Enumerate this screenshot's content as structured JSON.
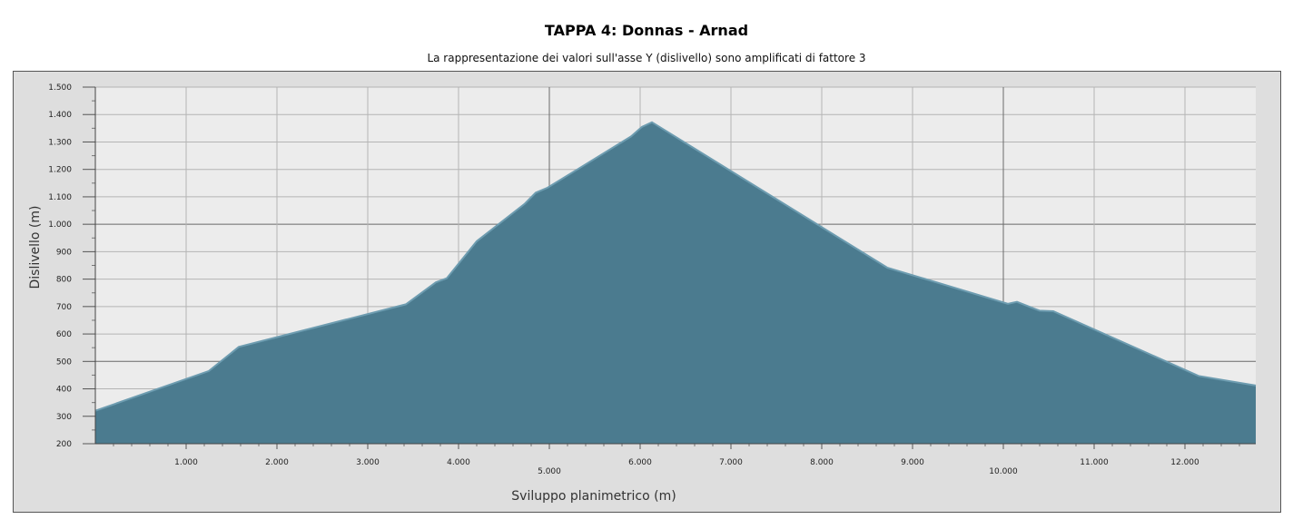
{
  "title": "TAPPA 4: Donnas - Arnad",
  "subtitle": "La rappresentazione dei valori sull'asse Y (dislivello) sono amplificati di fattore 3",
  "chart_data": {
    "type": "area",
    "xlabel": "Sviluppo planimetrico (m)",
    "ylabel": "Dislivello (m)",
    "xlim": [
      0,
      12780
    ],
    "ylim": [
      200,
      1500
    ],
    "grid": true,
    "area_color": "#4b7b8f",
    "line_color": "#6d9cb0",
    "plot_bg": "#ececec",
    "x_ticks": [
      {
        "value": 1000,
        "label": "1.000"
      },
      {
        "value": 2000,
        "label": "2.000"
      },
      {
        "value": 3000,
        "label": "3.000"
      },
      {
        "value": 4000,
        "label": "4.000"
      },
      {
        "value": 5000,
        "label": "5.000"
      },
      {
        "value": 6000,
        "label": "6.000"
      },
      {
        "value": 7000,
        "label": "7.000"
      },
      {
        "value": 8000,
        "label": "8.000"
      },
      {
        "value": 9000,
        "label": "9.000"
      },
      {
        "value": 10000,
        "label": "10.000"
      },
      {
        "value": 11000,
        "label": "11.000"
      },
      {
        "value": 12000,
        "label": "12.000"
      }
    ],
    "y_ticks": [
      {
        "value": 200,
        "label": "200"
      },
      {
        "value": 300,
        "label": "300"
      },
      {
        "value": 400,
        "label": "400"
      },
      {
        "value": 500,
        "label": "500"
      },
      {
        "value": 600,
        "label": "600"
      },
      {
        "value": 700,
        "label": "700"
      },
      {
        "value": 800,
        "label": "800"
      },
      {
        "value": 900,
        "label": "900"
      },
      {
        "value": 1000,
        "label": "1.000"
      },
      {
        "value": 1100,
        "label": "1.100"
      },
      {
        "value": 1200,
        "label": "1.200"
      },
      {
        "value": 1300,
        "label": "1.300"
      },
      {
        "value": 1400,
        "label": "1.400"
      },
      {
        "value": 1500,
        "label": "1.500"
      }
    ],
    "x_major": [
      5000,
      10000
    ],
    "y_major": [
      500,
      1000
    ],
    "points": [
      [
        0,
        320
      ],
      [
        1250,
        465
      ],
      [
        1580,
        553
      ],
      [
        3420,
        708
      ],
      [
        3750,
        788
      ],
      [
        3870,
        803
      ],
      [
        4200,
        938
      ],
      [
        4730,
        1075
      ],
      [
        4850,
        1115
      ],
      [
        4980,
        1133
      ],
      [
        5900,
        1320
      ],
      [
        6020,
        1355
      ],
      [
        6130,
        1372
      ],
      [
        8720,
        842
      ],
      [
        10050,
        710
      ],
      [
        10150,
        717
      ],
      [
        10400,
        685
      ],
      [
        10550,
        683
      ],
      [
        12150,
        447
      ],
      [
        12780,
        412
      ]
    ]
  }
}
